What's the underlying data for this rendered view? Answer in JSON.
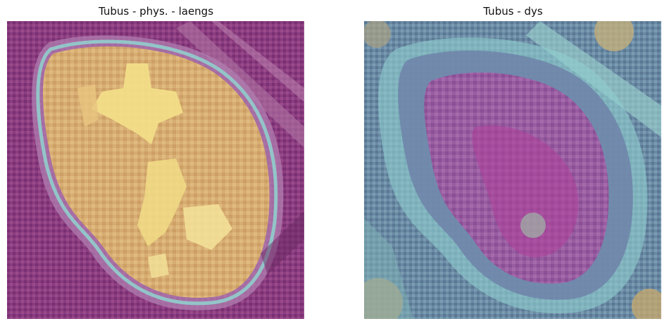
{
  "panels": [
    {
      "title": "Tubus - phys. - laengs",
      "image": "histology-heatmap-overlay-longitudinal"
    },
    {
      "title": "Tubus - dys",
      "image": "histology-heatmap-overlay-dysplastic"
    }
  ],
  "colors": {
    "background_purple": "#8a3a7e",
    "overlay_yellow": "#f2d27a",
    "overlay_cyan": "#8fd3cf",
    "overlay_teal": "#5e9aa8",
    "dark_purple": "#5a2050"
  }
}
